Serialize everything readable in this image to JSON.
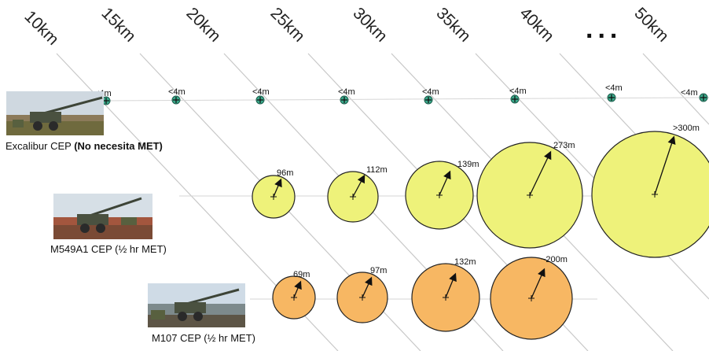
{
  "ranges": [
    "10km",
    "15km",
    "20km",
    "25km",
    "30km",
    "35km",
    "40km",
    "...",
    "50km"
  ],
  "colors": {
    "excalibur_marker": "#3aa88a",
    "m549_fill": "#eef27a",
    "m107_fill": "#f7b763",
    "guide_line": "#c8c8c8",
    "row_line": "#d6d6d6"
  },
  "rows": {
    "excalibur": {
      "caption_name": "Excalibur CEP",
      "caption_note": "(No necesita MET)",
      "points": [
        {
          "range": "15km",
          "cep": "<4m"
        },
        {
          "range": "20km",
          "cep": "<4m"
        },
        {
          "range": "25km",
          "cep": "<4m"
        },
        {
          "range": "30km",
          "cep": "<4m"
        },
        {
          "range": "35km",
          "cep": "<4m"
        },
        {
          "range": "40km",
          "cep": "<4m"
        },
        {
          "range": "...",
          "cep": "<4m"
        },
        {
          "range": "50km",
          "cep": "<4m"
        }
      ]
    },
    "m549": {
      "caption": "M549A1 CEP (½ hr MET)",
      "points": [
        {
          "range": "20km",
          "cep": "96m"
        },
        {
          "range": "25km",
          "cep": "112m"
        },
        {
          "range": "30km",
          "cep": "139m"
        },
        {
          "range": "35km",
          "cep": "273m"
        },
        {
          "range": "40km",
          "cep": ">300m"
        }
      ]
    },
    "m107": {
      "caption": "M107 CEP (½ hr MET)",
      "points": [
        {
          "range": "20km",
          "cep": "69m"
        },
        {
          "range": "25km",
          "cep": "97m"
        },
        {
          "range": "30km",
          "cep": "132m"
        },
        {
          "range": "35km",
          "cep": "~200m"
        }
      ]
    }
  }
}
